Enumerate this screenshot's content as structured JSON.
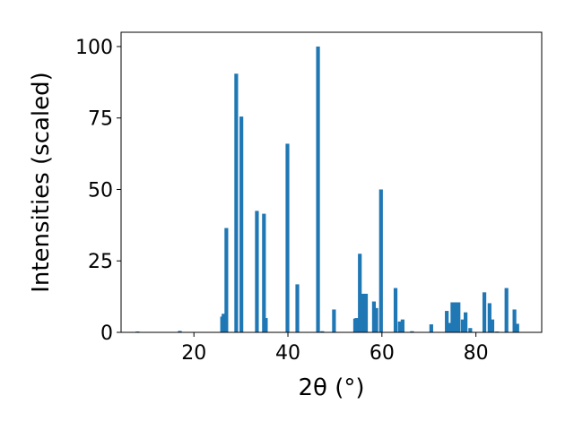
{
  "chart_data": {
    "type": "bar",
    "title": "",
    "xlabel": "2θ (°)",
    "ylabel": "Intensities (scaled)",
    "xlim": [
      4.5,
      94
    ],
    "ylim": [
      0,
      105
    ],
    "xticks": [
      20,
      40,
      60,
      80
    ],
    "yticks": [
      0,
      25,
      50,
      75,
      100
    ],
    "bar_width": 0.8,
    "color": "#1f77b4",
    "grid": false,
    "x": [
      8.0,
      17.0,
      26.0,
      26.3,
      26.9,
      29.0,
      30.1,
      33.4,
      34.9,
      35.3,
      39.9,
      42.0,
      46.4,
      47.3,
      49.8,
      54.3,
      54.6,
      55.3,
      56.0,
      56.6,
      58.3,
      58.8,
      59.8,
      62.9,
      63.8,
      64.4,
      66.4,
      70.5,
      73.8,
      74.3,
      75.0,
      75.6,
      76.3,
      77.2,
      77.8,
      78.8,
      81.8,
      82.9,
      83.5,
      84.5,
      86.5,
      88.2,
      88.8
    ],
    "values": [
      0.3,
      0.5,
      5.5,
      6.5,
      36.5,
      90.5,
      75.5,
      42.5,
      41.5,
      5.0,
      66.0,
      16.8,
      100.0,
      0.4,
      8.0,
      4.8,
      5.0,
      27.5,
      13.5,
      13.5,
      10.8,
      8.5,
      50.0,
      15.5,
      3.8,
      4.5,
      0.4,
      2.8,
      7.5,
      3.3,
      10.5,
      10.5,
      10.5,
      4.5,
      7.0,
      1.5,
      14.0,
      10.2,
      4.5,
      0.3,
      15.5,
      8.0,
      3.0
    ]
  }
}
